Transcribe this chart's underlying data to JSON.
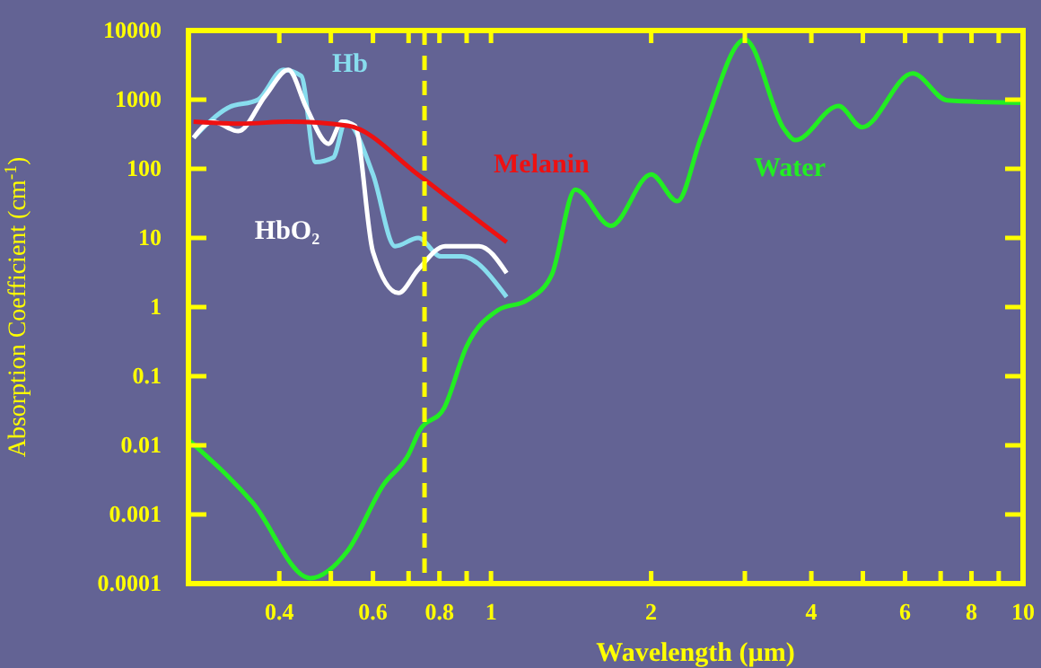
{
  "chart_data": {
    "type": "line",
    "xlabel": "Wavelength (µm)",
    "ylabel": "Absorption Coefficient (cm$^{-1}$)",
    "log": "xy",
    "grid": false,
    "xlim": [
      0.27,
      10
    ],
    "ylim": [
      0.0001,
      10000
    ],
    "xticks": [
      0.4,
      {
        "value": 0.5,
        "label": null
      },
      0.6,
      {
        "value": 0.7,
        "label": null
      },
      0.8,
      {
        "value": 0.9,
        "label": null
      },
      1,
      2,
      {
        "value": 3,
        "label": null
      },
      4,
      {
        "value": 5,
        "label": null
      },
      6,
      {
        "value": 7,
        "label": null
      },
      8,
      {
        "value": 9,
        "label": null
      },
      10
    ],
    "yticks": [
      0.0001,
      0.001,
      0.01,
      0.1,
      1,
      10,
      100,
      1000,
      10000
    ],
    "ref_lines": [
      {
        "axis": "x",
        "value": 0.75,
        "color": "#ffff00",
        "line_style": "dashed"
      }
    ],
    "series": [
      {
        "name": "Hb",
        "color": "#88ddee",
        "x": [
          0.276,
          0.32,
          0.365,
          0.407,
          0.44,
          0.468,
          0.505,
          0.533,
          0.6,
          0.66,
          0.73,
          0.805,
          0.88,
          1.07
        ],
        "values": [
          280,
          760,
          1000,
          2700,
          2200,
          125,
          145,
          480,
          83,
          7.6,
          10,
          5.4,
          5.4,
          1.4
        ]
      },
      {
        "name": "HbO₂",
        "color": "#ffffff",
        "x": [
          0.276,
          0.3,
          0.335,
          0.377,
          0.416,
          0.45,
          0.495,
          0.525,
          0.555,
          0.6,
          0.67,
          0.73,
          0.82,
          0.95,
          1.07
        ],
        "values": [
          280,
          480,
          350,
          1150,
          2700,
          760,
          230,
          480,
          420,
          6.3,
          1.6,
          3.5,
          7.6,
          7.6,
          3.1
        ]
      },
      {
        "name": "Melanin",
        "color": "#ee1111",
        "x": [
          0.276,
          0.34,
          0.416,
          0.538,
          0.733,
          0.856,
          1.07
        ],
        "values": [
          480,
          450,
          480,
          420,
          80,
          32,
          8.7
        ]
      },
      {
        "name": "Water",
        "color": "#22ee22",
        "x": [
          0.27,
          0.356,
          0.457,
          0.538,
          0.628,
          0.7,
          0.733,
          0.817,
          0.9,
          1.03,
          1.17,
          1.3,
          1.44,
          1.68,
          2.0,
          2.24,
          2.48,
          3.0,
          3.56,
          3.73,
          4.5,
          4.98,
          6.2,
          7.2,
          10
        ],
        "values": [
          0.012,
          0.0015,
          0.00012,
          0.0003,
          0.0027,
          0.0074,
          0.016,
          0.035,
          0.27,
          0.9,
          1.26,
          2.9,
          50,
          15,
          83,
          34,
          280,
          7400,
          370,
          260,
          810,
          400,
          2400,
          980,
          900
        ]
      }
    ]
  }
}
